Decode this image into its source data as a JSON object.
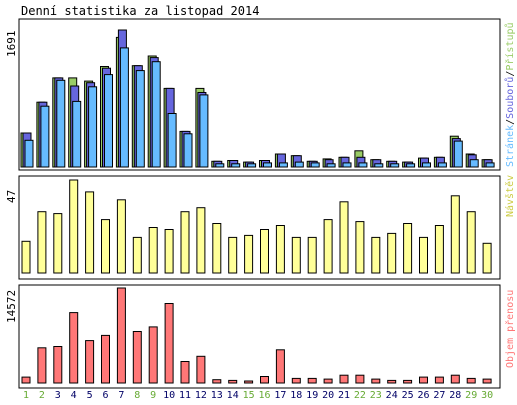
{
  "title": "Denní statistika za listopad 2014",
  "colors": {
    "hits": "#99cc66",
    "files": "#6666dd",
    "pages": "#66bbff",
    "visits": "#ffff99",
    "kbytes": "#ff7777",
    "weekend_day": "#66aa33",
    "weekday": "#000066"
  },
  "chart_data": [
    {
      "type": "bar",
      "title": "Denní statistika za listopad 2014",
      "ylim": [
        0,
        1691
      ],
      "max_label": "1691",
      "legend": [
        {
          "name": "Přístupů",
          "color": "#99cc66"
        },
        {
          "name": "Souborů",
          "color": "#6666dd"
        },
        {
          "name": "Stránek",
          "color": "#66bbff"
        }
      ],
      "categories": [
        "1",
        "2",
        "3",
        "4",
        "5",
        "6",
        "7",
        "8",
        "9",
        "10",
        "11",
        "12",
        "13",
        "14",
        "15",
        "16",
        "17",
        "18",
        "19",
        "20",
        "21",
        "22",
        "23",
        "24",
        "25",
        "26",
        "27",
        "28",
        "29",
        "30"
      ],
      "series": [
        {
          "name": "Přístupů",
          "values": [
            420,
            800,
            1100,
            1100,
            1060,
            1240,
            1600,
            1250,
            1370,
            970,
            440,
            970,
            70,
            80,
            60,
            80,
            160,
            140,
            70,
            100,
            120,
            200,
            90,
            70,
            60,
            110,
            120,
            380,
            160,
            90
          ]
        },
        {
          "name": "Souborů",
          "values": [
            420,
            800,
            1100,
            1000,
            1040,
            1220,
            1691,
            1250,
            1350,
            970,
            440,
            920,
            70,
            80,
            60,
            80,
            160,
            140,
            70,
            90,
            120,
            120,
            90,
            70,
            60,
            110,
            120,
            350,
            150,
            90
          ]
        },
        {
          "name": "Stránek",
          "values": [
            330,
            750,
            1070,
            810,
            990,
            1140,
            1470,
            1190,
            1300,
            660,
            410,
            890,
            40,
            40,
            40,
            50,
            50,
            60,
            50,
            40,
            50,
            50,
            40,
            40,
            40,
            50,
            50,
            320,
            90,
            50
          ]
        }
      ]
    },
    {
      "type": "bar",
      "ylim": [
        0,
        47
      ],
      "max_label": "47",
      "legend": [
        {
          "name": "Návštěv",
          "color": "#ffff99"
        }
      ],
      "categories": [
        "1",
        "2",
        "3",
        "4",
        "5",
        "6",
        "7",
        "8",
        "9",
        "10",
        "11",
        "12",
        "13",
        "14",
        "15",
        "16",
        "17",
        "18",
        "19",
        "20",
        "21",
        "22",
        "23",
        "24",
        "25",
        "26",
        "27",
        "28",
        "29",
        "30"
      ],
      "series": [
        {
          "name": "Návštěv",
          "values": [
            16,
            31,
            30,
            47,
            41,
            27,
            37,
            18,
            23,
            22,
            31,
            33,
            25,
            18,
            19,
            22,
            24,
            18,
            18,
            27,
            36,
            26,
            18,
            20,
            25,
            18,
            24,
            39,
            31,
            15
          ]
        }
      ]
    },
    {
      "type": "bar",
      "ylim": [
        0,
        14572
      ],
      "max_label": "14572",
      "legend": [
        {
          "name": "Objem přenosu",
          "color": "#ff7777"
        }
      ],
      "categories": [
        "1",
        "2",
        "3",
        "4",
        "5",
        "6",
        "7",
        "8",
        "9",
        "10",
        "11",
        "12",
        "13",
        "14",
        "15",
        "16",
        "17",
        "18",
        "19",
        "20",
        "21",
        "22",
        "23",
        "24",
        "25",
        "26",
        "27",
        "28",
        "29",
        "30"
      ],
      "series": [
        {
          "name": "Objem přenosu",
          "values": [
            900,
            5400,
            5600,
            10800,
            6500,
            7300,
            14572,
            7900,
            8600,
            12200,
            3300,
            4100,
            500,
            400,
            300,
            1000,
            5100,
            700,
            700,
            600,
            1200,
            1200,
            600,
            400,
            400,
            900,
            900,
            1200,
            700,
            600
          ]
        }
      ]
    }
  ],
  "day_labels": [
    "1",
    "2",
    "3",
    "4",
    "5",
    "6",
    "7",
    "8",
    "9",
    "10",
    "11",
    "12",
    "13",
    "14",
    "15",
    "16",
    "17",
    "18",
    "19",
    "20",
    "21",
    "22",
    "23",
    "24",
    "25",
    "26",
    "27",
    "28",
    "29",
    "30"
  ],
  "weekend_days": [
    "1",
    "2",
    "8",
    "9",
    "15",
    "16",
    "22",
    "23",
    "29",
    "30"
  ]
}
